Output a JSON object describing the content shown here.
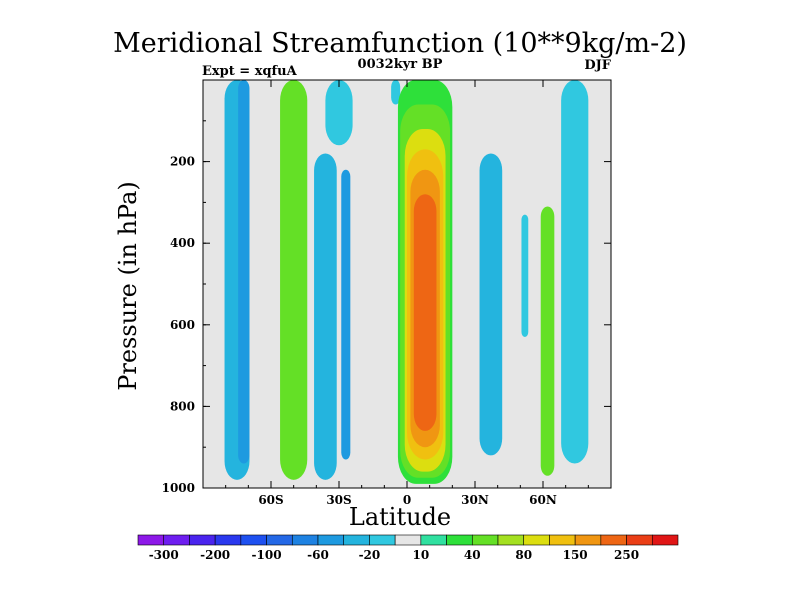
{
  "chart_data": {
    "type": "heatmap",
    "title": "Meridional Streamfunction (10**9kg/m-2)",
    "subtitle_left": "Expt = xqfuA",
    "subtitle_center": "0032kyr BP",
    "subtitle_right": "DJF",
    "xlabel": "Latitude",
    "ylabel": "Pressure (in hPa)",
    "xlim": [
      -90,
      90
    ],
    "ylim": [
      1000,
      0
    ],
    "x_ticks": [
      {
        "value": -60,
        "label": "60S"
      },
      {
        "value": -30,
        "label": "30S"
      },
      {
        "value": 0,
        "label": "0"
      },
      {
        "value": 30,
        "label": "30N"
      },
      {
        "value": 60,
        "label": "60N"
      }
    ],
    "y_ticks": [
      {
        "value": 200,
        "label": "200"
      },
      {
        "value": 400,
        "label": "400"
      },
      {
        "value": 600,
        "label": "600"
      },
      {
        "value": 800,
        "label": "800"
      },
      {
        "value": 1000,
        "label": "1000"
      }
    ],
    "colorbar": {
      "levels": [
        -300,
        -250,
        -200,
        -150,
        -100,
        -80,
        -60,
        -40,
        -20,
        -10,
        10,
        20,
        40,
        60,
        80,
        100,
        150,
        200,
        250,
        300
      ],
      "colors": [
        "#8d18e8",
        "#6e1ef0",
        "#4a24ee",
        "#2a38ee",
        "#1e50f0",
        "#2468e6",
        "#1e82e2",
        "#1e9ae0",
        "#24b4de",
        "#30c8e0",
        "#e6e6e6",
        "#30e0a0",
        "#2ee03a",
        "#64e026",
        "#a4e020",
        "#dcde10",
        "#f0c010",
        "#f09612",
        "#ee6614",
        "#ea3e16",
        "#e01616"
      ],
      "labels": [
        "-300",
        "-200",
        "-100",
        "-60",
        "-20",
        "10",
        "40",
        "80",
        "150",
        "250"
      ]
    },
    "background": "#e6e6e6",
    "features": [
      {
        "lat": -75,
        "pmin": 0,
        "pmax": 980,
        "value": -40
      },
      {
        "lat": -72,
        "pmin": 0,
        "pmax": 940,
        "value": -60
      },
      {
        "lat": -50,
        "pmin": 0,
        "pmax": 980,
        "value": 40
      },
      {
        "lat": -36,
        "pmin": 180,
        "pmax": 980,
        "value": -40
      },
      {
        "lat": -27,
        "pmin": 220,
        "pmax": 930,
        "value": -60
      },
      {
        "lat": -30,
        "pmin": 0,
        "pmax": 160,
        "value": -20
      },
      {
        "lat": -5,
        "pmin": 0,
        "pmax": 60,
        "value": -20
      },
      {
        "lat": 8,
        "pmin": 0,
        "pmax": 990,
        "value": 20
      },
      {
        "lat": 8,
        "pmin": 60,
        "pmax": 975,
        "value": 40
      },
      {
        "lat": 8,
        "pmin": 120,
        "pmax": 960,
        "value": 80
      },
      {
        "lat": 8,
        "pmin": 170,
        "pmax": 930,
        "value": 100
      },
      {
        "lat": 8,
        "pmin": 220,
        "pmax": 900,
        "value": 150
      },
      {
        "lat": 8,
        "pmin": 280,
        "pmax": 860,
        "value": 200
      },
      {
        "lat": 37,
        "pmin": 180,
        "pmax": 920,
        "value": -40
      },
      {
        "lat": 52,
        "pmin": 330,
        "pmax": 630,
        "value": -20
      },
      {
        "lat": 62,
        "pmin": 310,
        "pmax": 970,
        "value": 40
      },
      {
        "lat": 74,
        "pmin": 0,
        "pmax": 940,
        "value": -20
      }
    ]
  }
}
